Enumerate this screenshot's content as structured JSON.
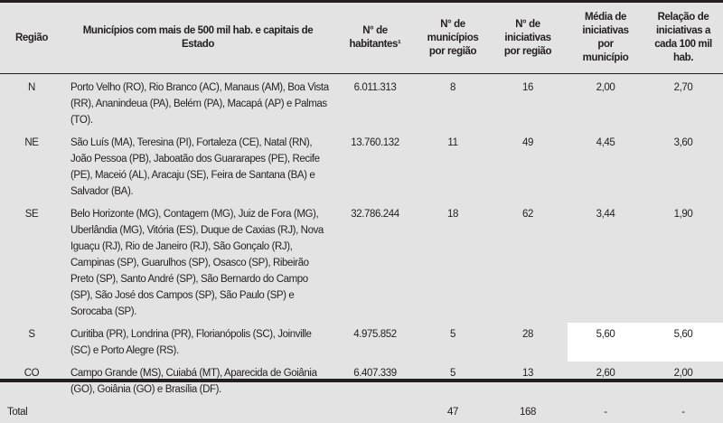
{
  "headers": {
    "regiao": "Região",
    "municipios": "Municípios com mais de 500 mil hab. e capitais de Estado",
    "habitantes": "N° de habitantes¹",
    "num_municipios": "N° de municípios por região",
    "num_iniciativas": "N° de iniciativas por região",
    "media": "Média de iniciativas por município",
    "relacao": "Relação de iniciativas a cada 100 mil hab."
  },
  "rows": [
    {
      "regiao": "N",
      "municipios": "Porto Velho (RO), Rio Branco (AC), Manaus (AM), Boa Vista (RR), Ananindeua (PA), Belém (PA), Macapá (AP) e Palmas (TO).",
      "habitantes": "6.011.313",
      "num_municipios": "8",
      "num_iniciativas": "16",
      "media": "2,00",
      "relacao": "2,70"
    },
    {
      "regiao": "NE",
      "municipios": "São Luís (MA), Teresina (PI), Fortaleza (CE), Natal (RN), João Pessoa (PB), Jaboatão dos Guararapes (PE), Recife (PE), Maceió (AL), Aracaju (SE), Feira de Santana (BA) e Salvador (BA).",
      "habitantes": "13.760.132",
      "num_municipios": "11",
      "num_iniciativas": "49",
      "media": "4,45",
      "relacao": "3,60"
    },
    {
      "regiao": "SE",
      "municipios": "Belo Horizonte (MG), Contagem (MG), Juiz de Fora (MG), Uberlândia (MG), Vitória (ES), Duque de Caxias (RJ), Nova Iguaçu (RJ), Rio de Janeiro (RJ), São Gonçalo (RJ), Campinas (SP), Guarulhos (SP), Osasco (SP), Ribeirão Preto (SP), Santo André (SP), São Bernardo do Campo (SP), São José dos Campos (SP), São Paulo (SP) e Sorocaba (SP).",
      "habitantes": "32.786.244",
      "num_municipios": "18",
      "num_iniciativas": "62",
      "media": "3,44",
      "relacao": "1,90"
    },
    {
      "regiao": "S",
      "municipios": "Curitiba (PR), Londrina (PR), Florianópolis (SC), Joinville (SC) e Porto Alegre (RS).",
      "habitantes": "4.975.852",
      "num_municipios": "5",
      "num_iniciativas": "28",
      "media": "5,60",
      "relacao": "5,60"
    },
    {
      "regiao": "CO",
      "municipios": "Campo Grande (MS), Cuiabá (MT), Aparecida de Goiânia (GO), Goiânia (GO) e Brasília (DF).",
      "habitantes": "6.407.339",
      "num_municipios": "5",
      "num_iniciativas": "13",
      "media": "2,60",
      "relacao": "2,00"
    }
  ],
  "total": {
    "label": "Total",
    "num_municipios": "47",
    "num_iniciativas": "168",
    "media": "-",
    "relacao": "-"
  }
}
